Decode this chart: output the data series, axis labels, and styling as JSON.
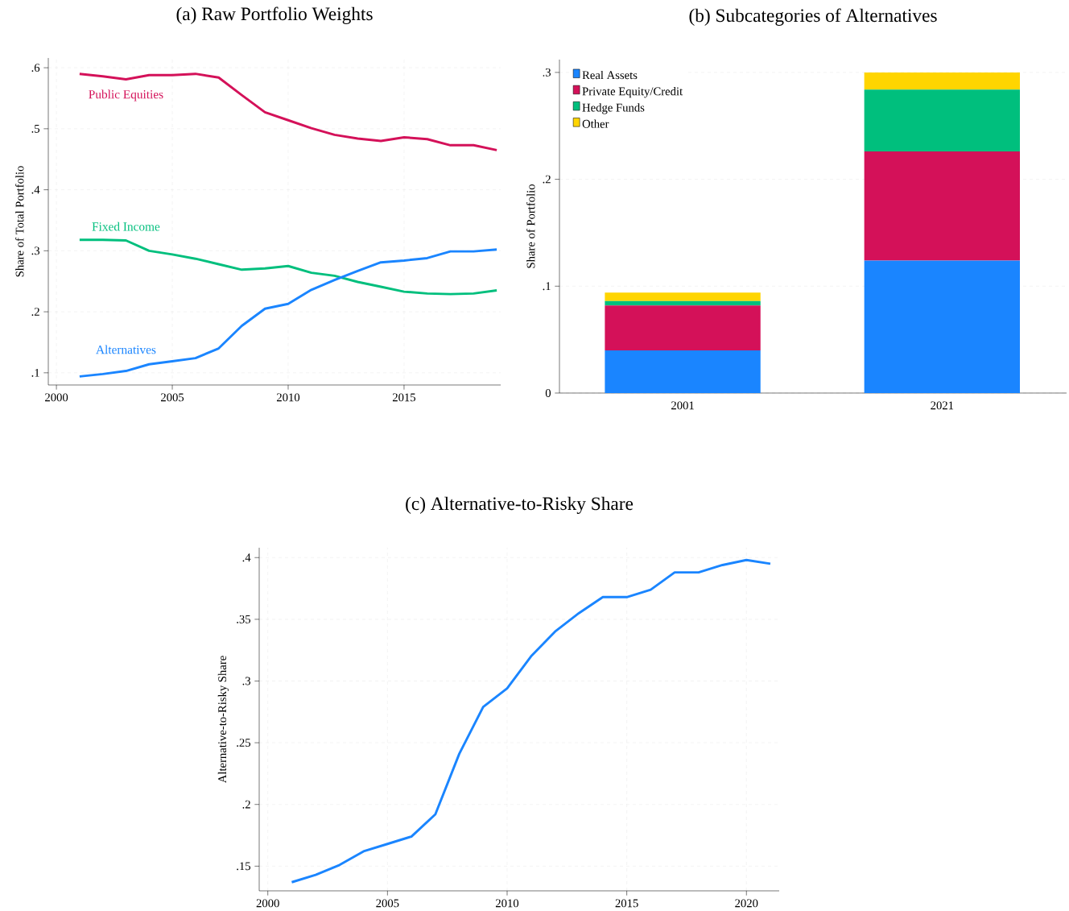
{
  "chart_data": [
    {
      "type": "line",
      "title": "(a) Raw Portfolio Weights",
      "ylabel": "Share of Total Portfolio",
      "x": [
        2001,
        2002,
        2003,
        2004,
        2005,
        2006,
        2007,
        2008,
        2009,
        2010,
        2011,
        2012,
        2013,
        2014,
        2015,
        2016,
        2017,
        2018,
        2019
      ],
      "series": [
        {
          "name": "Public Equities",
          "color": "#d41159",
          "values": [
            0.59,
            0.586,
            0.581,
            0.588,
            0.588,
            0.59,
            0.584,
            0.555,
            0.527,
            0.514,
            0.501,
            0.49,
            0.484,
            0.48,
            0.486,
            0.483,
            0.473,
            0.473,
            0.465
          ]
        },
        {
          "name": "Fixed Income",
          "color": "#00bf7d",
          "values": [
            0.318,
            0.318,
            0.317,
            0.3,
            0.294,
            0.287,
            0.278,
            0.269,
            0.271,
            0.275,
            0.264,
            0.259,
            0.249,
            0.241,
            0.233,
            0.23,
            0.229,
            0.23,
            0.235
          ]
        },
        {
          "name": "Alternatives",
          "color": "#1a85ff",
          "values": [
            0.094,
            0.098,
            0.103,
            0.114,
            0.119,
            0.124,
            0.14,
            0.177,
            0.205,
            0.213,
            0.236,
            0.252,
            0.267,
            0.281,
            0.284,
            0.288,
            0.299,
            0.299,
            0.302
          ]
        }
      ],
      "xlim": [
        1999.65,
        2019.17
      ],
      "ylim": [
        0.08,
        0.616
      ],
      "xticks": [
        2000,
        2005,
        2010,
        2015
      ],
      "yticks": [
        {
          "value": 0.1,
          "label": ".1"
        },
        {
          "value": 0.2,
          "label": ".2"
        },
        {
          "value": 0.3,
          "label": ".3"
        },
        {
          "value": 0.4,
          "label": ".4"
        },
        {
          "value": 0.5,
          "label": ".5"
        },
        {
          "value": 0.6,
          "label": ".6"
        }
      ],
      "grid": true,
      "legend": false
    },
    {
      "type": "bar",
      "title": "(b) Subcategories of Alternatives",
      "ylabel": "Share of Portfolio",
      "categories": [
        "2001",
        "2021"
      ],
      "stacked": true,
      "series": [
        {
          "name": "Real Assets",
          "color": "#1a85ff",
          "values": [
            0.04,
            0.124
          ]
        },
        {
          "name": "Private Equity/Credit",
          "color": "#d41159",
          "values": [
            0.042,
            0.102
          ]
        },
        {
          "name": "Hedge Funds",
          "color": "#00bf7d",
          "values": [
            0.004,
            0.058
          ]
        },
        {
          "name": "Other",
          "color": "#ffd500",
          "values": [
            0.008,
            0.016
          ]
        }
      ],
      "ylim": [
        0,
        0.312
      ],
      "yticks": [
        0,
        {
          "value": 0.1,
          "label": ".1"
        },
        {
          "value": 0.2,
          "label": ".2"
        },
        {
          "value": 0.3,
          "label": ".3"
        }
      ],
      "grid": "y",
      "legend": "top left"
    },
    {
      "type": "line",
      "title": "(c) Alternative-to-Risky Share",
      "ylabel": "Alternative-to-Risky Share",
      "x": [
        2001,
        2002,
        2003,
        2004,
        2005,
        2006,
        2007,
        2008,
        2009,
        2010,
        2011,
        2012,
        2013,
        2014,
        2015,
        2016,
        2017,
        2018,
        2019,
        2020,
        2021
      ],
      "series": [
        {
          "color": "#1a85ff",
          "values": [
            0.137,
            0.143,
            0.151,
            0.162,
            0.168,
            0.174,
            0.192,
            0.241,
            0.279,
            0.294,
            0.32,
            0.34,
            0.355,
            0.368,
            0.368,
            0.374,
            0.388,
            0.388,
            0.394,
            0.398,
            0.395
          ]
        }
      ],
      "xlim": [
        1999.64,
        2021.37
      ],
      "ylim": [
        0.13,
        0.408
      ],
      "xticks": [
        2000,
        2005,
        2010,
        2015,
        2020
      ],
      "yticks": [
        {
          "value": 0.15,
          "label": ".15"
        },
        {
          "value": 0.2,
          "label": ".2"
        },
        {
          "value": 0.25,
          "label": ".25"
        },
        {
          "value": 0.3,
          "label": ".3"
        },
        {
          "value": 0.35,
          "label": ".35"
        },
        {
          "value": 0.4,
          "label": ".4"
        }
      ],
      "grid": true
    }
  ]
}
